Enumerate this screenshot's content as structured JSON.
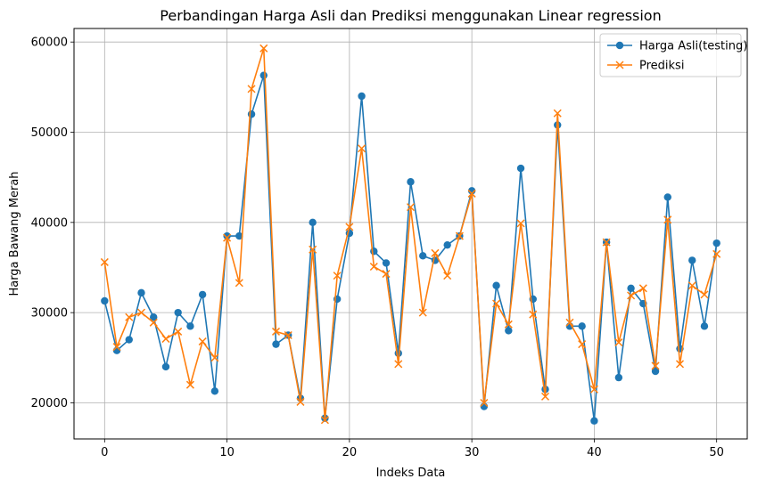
{
  "chart_data": {
    "type": "line",
    "title": "Perbandingan Harga Asli dan Prediksi menggunakan Linear regression",
    "xlabel": "Indeks Data",
    "ylabel": "Harga Bawang Merah",
    "xlim": [
      -2.5,
      52.5
    ],
    "ylim": [
      16000,
      61500
    ],
    "xticks": [
      0,
      10,
      20,
      30,
      40,
      50
    ],
    "yticks": [
      20000,
      30000,
      40000,
      50000,
      60000
    ],
    "grid": true,
    "legend_position": "top-right",
    "x": [
      0,
      1,
      2,
      3,
      4,
      5,
      6,
      7,
      8,
      9,
      10,
      11,
      12,
      13,
      14,
      15,
      16,
      17,
      18,
      19,
      20,
      21,
      22,
      23,
      24,
      25,
      26,
      27,
      28,
      29,
      30,
      31,
      32,
      33,
      34,
      35,
      36,
      37,
      38,
      39,
      40,
      41,
      42,
      43,
      44,
      45,
      46,
      47,
      48,
      49,
      50
    ],
    "series": [
      {
        "name": "Harga Asli(testing)",
        "color": "#1f77b4",
        "marker": "circle",
        "values": [
          31300,
          25800,
          27000,
          32200,
          29500,
          24000,
          30000,
          28500,
          32000,
          21300,
          38500,
          38500,
          52000,
          56300,
          26500,
          27500,
          20500,
          40000,
          18300,
          31500,
          38800,
          54000,
          36800,
          35500,
          25500,
          44500,
          36300,
          35800,
          37500,
          38500,
          43500,
          19600,
          33000,
          28000,
          46000,
          31500,
          21500,
          50800,
          28500,
          28500,
          18000,
          37800,
          22800,
          32700,
          31000,
          23500,
          42800,
          26000,
          35800,
          28500,
          37700
        ]
      },
      {
        "name": "Prediksi",
        "color": "#ff7f0e",
        "marker": "x",
        "values": [
          35600,
          26200,
          29500,
          30000,
          28900,
          27100,
          27900,
          22000,
          26800,
          25000,
          38300,
          33300,
          54800,
          59300,
          27900,
          27500,
          20100,
          37000,
          18100,
          34100,
          39500,
          48200,
          35100,
          34300,
          24300,
          41700,
          30000,
          36600,
          34100,
          38500,
          43200,
          20000,
          31000,
          28700,
          39900,
          29800,
          20700,
          52100,
          28900,
          26500,
          21500,
          37800,
          26700,
          31900,
          32700,
          24100,
          40300,
          24300,
          33000,
          32000,
          36500
        ]
      }
    ]
  }
}
